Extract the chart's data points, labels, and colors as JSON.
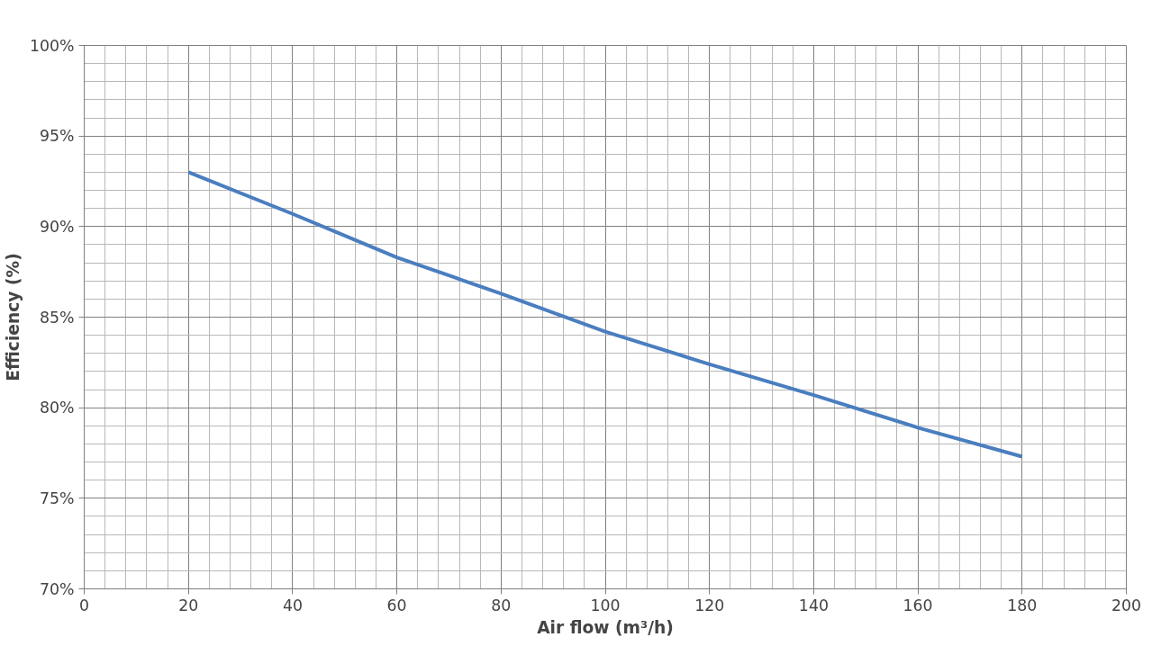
{
  "chart_data": {
    "type": "line",
    "xlabel": "Air flow (m³/h)",
    "ylabel": "Efficiency (%)",
    "x": [
      20,
      40,
      60,
      80,
      100,
      120,
      140,
      160,
      180
    ],
    "series": [
      {
        "color": "#4a7ebf",
        "values": [
          93.0,
          90.7,
          88.3,
          86.3,
          84.2,
          82.4,
          80.7,
          78.9,
          77.3
        ]
      }
    ],
    "xlim": [
      0,
      200
    ],
    "xticks": [
      0,
      20,
      40,
      60,
      80,
      100,
      120,
      140,
      160,
      180,
      200
    ],
    "ylim": [
      70,
      100
    ],
    "yticks": [
      {
        "value": 70,
        "label": "70%"
      },
      {
        "value": 75,
        "label": "75%"
      },
      {
        "value": 80,
        "label": "80%"
      },
      {
        "value": 85,
        "label": "85%"
      },
      {
        "value": 90,
        "label": "90%"
      },
      {
        "value": 95,
        "label": "95%"
      },
      {
        "value": 100,
        "label": "100%"
      }
    ],
    "grid": true,
    "marker": "none",
    "line_style": "solid"
  }
}
